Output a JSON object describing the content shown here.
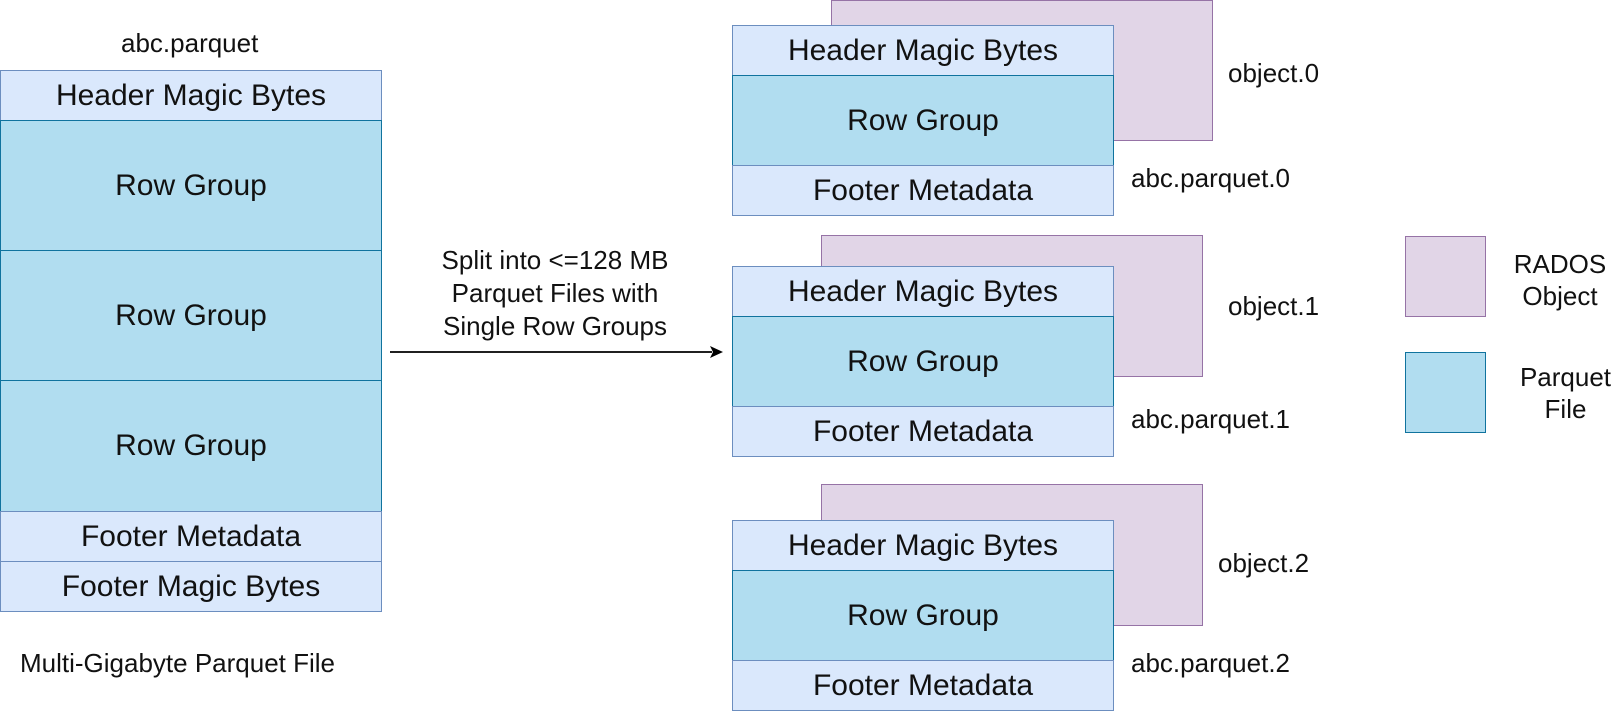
{
  "source_file": {
    "title": "abc.parquet",
    "caption": "Multi-Gigabyte Parquet File",
    "segments": {
      "header": "Header Magic Bytes",
      "row_group_1": "Row Group",
      "row_group_2": "Row Group",
      "row_group_3": "Row Group",
      "footer_metadata": "Footer Metadata",
      "footer_magic": "Footer Magic Bytes"
    }
  },
  "arrow": {
    "label_line1": "Split into <=128 MB",
    "label_line2": "Parquet Files with",
    "label_line3": "Single Row Groups"
  },
  "split_files": [
    {
      "object_label": "object.0",
      "file_label": "abc.parquet.0",
      "header": "Header Magic Bytes",
      "row_group": "Row Group",
      "footer": "Footer Metadata"
    },
    {
      "object_label": "object.1",
      "file_label": "abc.parquet.1",
      "header": "Header Magic Bytes",
      "row_group": "Row Group",
      "footer": "Footer Metadata"
    },
    {
      "object_label": "object.2",
      "file_label": "abc.parquet.2",
      "header": "Header Magic Bytes",
      "row_group": "Row Group",
      "footer": "Footer Metadata"
    }
  ],
  "legend": {
    "rados_line1": "RADOS",
    "rados_line2": "Object",
    "parquet_line1": "Parquet",
    "parquet_line2": "File"
  },
  "colors": {
    "light_blue": "#dae8fc",
    "row_group_blue": "#b1ddf0",
    "rados_purple": "#e1d5e7"
  }
}
